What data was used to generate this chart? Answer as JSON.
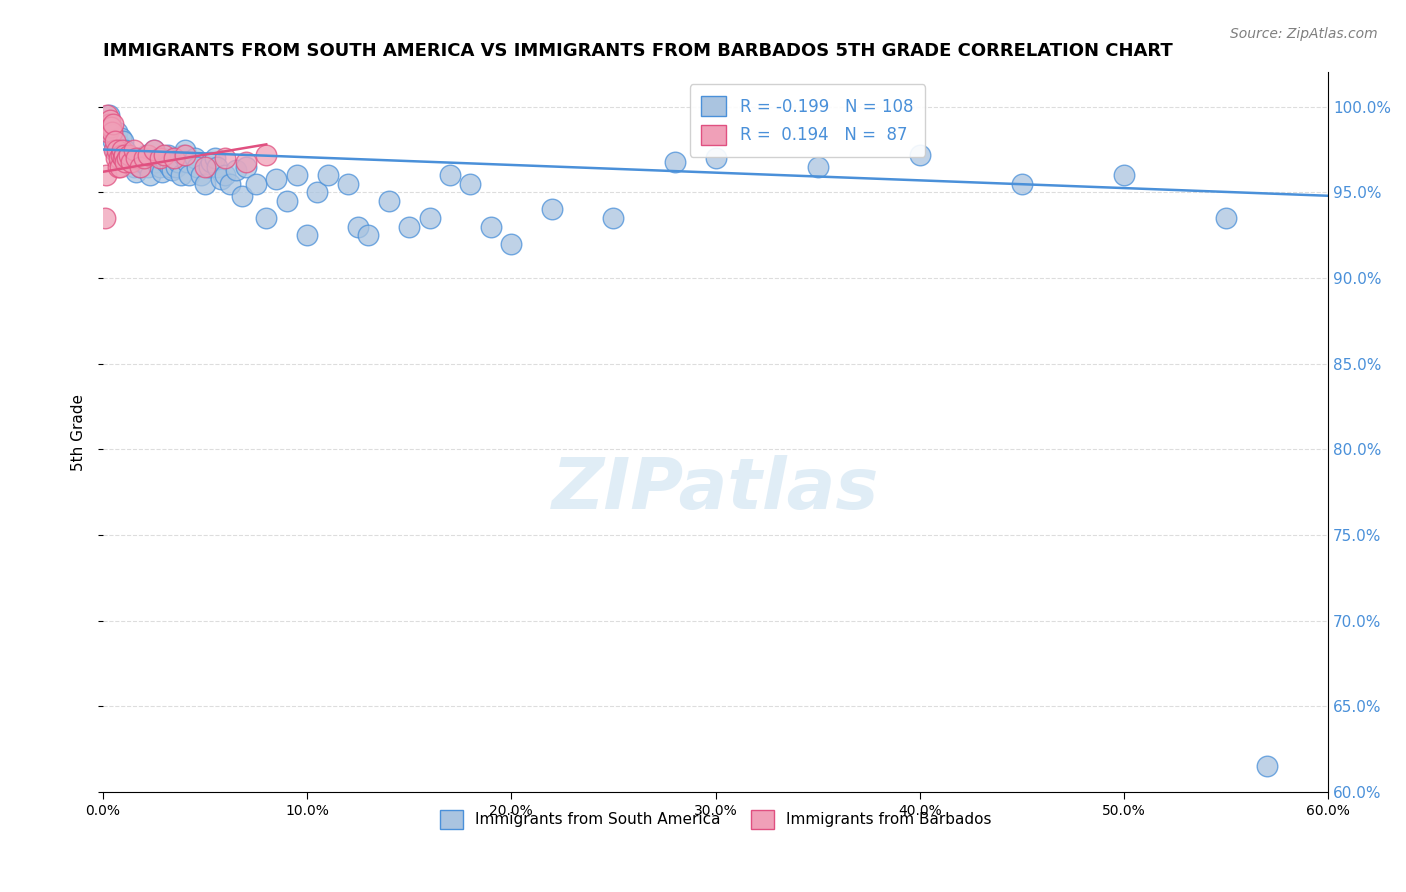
{
  "title": "IMMIGRANTS FROM SOUTH AMERICA VS IMMIGRANTS FROM BARBADOS 5TH GRADE CORRELATION CHART",
  "source": "Source: ZipAtlas.com",
  "ylabel": "5th Grade",
  "xlim": [
    0.0,
    60.0
  ],
  "ylim": [
    60.0,
    102.0
  ],
  "yticks": [
    60.0,
    65.0,
    70.0,
    75.0,
    80.0,
    85.0,
    90.0,
    95.0,
    100.0
  ],
  "ytick_labels": [
    "60.0%",
    "65.0%",
    "70.0%",
    "75.0%",
    "80.0%",
    "85.0%",
    "90.0%",
    "95.0%",
    "100.0%"
  ],
  "xticks": [
    0,
    10,
    20,
    30,
    40,
    50,
    60
  ],
  "xtick_labels": [
    "0.0%",
    "10.0%",
    "20.0%",
    "30.0%",
    "40.0%",
    "50.0%",
    "60.0%"
  ],
  "grid_color": "#dddddd",
  "background_color": "#ffffff",
  "blue_color": "#aac4e0",
  "blue_line_color": "#4a90d9",
  "pink_color": "#f0a0b8",
  "pink_line_color": "#e05080",
  "legend_R_blue": "-0.199",
  "legend_N_blue": "108",
  "legend_R_pink": "0.194",
  "legend_N_pink": "87",
  "watermark": "ZIPatlas",
  "blue_scatter_x": [
    0.3,
    0.5,
    0.6,
    0.7,
    0.8,
    0.9,
    1.0,
    1.1,
    1.2,
    1.3,
    1.4,
    1.5,
    1.6,
    1.7,
    1.8,
    1.9,
    2.0,
    2.1,
    2.2,
    2.3,
    2.5,
    2.6,
    2.7,
    2.8,
    2.9,
    3.0,
    3.1,
    3.2,
    3.3,
    3.4,
    3.5,
    3.6,
    3.7,
    3.8,
    3.9,
    4.0,
    4.1,
    4.2,
    4.5,
    4.6,
    4.8,
    5.0,
    5.2,
    5.3,
    5.5,
    5.6,
    5.8,
    6.0,
    6.2,
    6.5,
    6.8,
    7.0,
    7.5,
    8.0,
    8.5,
    9.0,
    9.5,
    10.0,
    10.5,
    11.0,
    12.0,
    12.5,
    13.0,
    14.0,
    15.0,
    16.0,
    17.0,
    18.0,
    19.0,
    20.0,
    22.0,
    25.0,
    28.0,
    30.0,
    35.0,
    40.0,
    45.0,
    50.0,
    55.0,
    57.0
  ],
  "blue_scatter_y": [
    99.5,
    98.0,
    97.5,
    98.5,
    97.8,
    98.2,
    98.0,
    97.5,
    97.2,
    97.0,
    96.8,
    96.5,
    96.2,
    97.0,
    96.5,
    96.8,
    97.0,
    97.2,
    96.5,
    96.0,
    97.5,
    96.8,
    97.0,
    96.5,
    96.2,
    97.0,
    96.8,
    97.2,
    96.5,
    96.3,
    97.0,
    96.5,
    96.8,
    96.0,
    97.2,
    97.5,
    96.8,
    96.0,
    97.0,
    96.5,
    96.0,
    95.5,
    96.5,
    96.8,
    97.0,
    96.5,
    95.8,
    96.0,
    95.5,
    96.3,
    94.8,
    96.5,
    95.5,
    93.5,
    95.8,
    94.5,
    96.0,
    92.5,
    95.0,
    96.0,
    95.5,
    93.0,
    92.5,
    94.5,
    93.0,
    93.5,
    96.0,
    95.5,
    93.0,
    92.0,
    94.0,
    93.5,
    96.8,
    97.0,
    96.5,
    97.2,
    95.5,
    96.0,
    93.5,
    61.5
  ],
  "pink_scatter_x": [
    0.1,
    0.15,
    0.2,
    0.25,
    0.3,
    0.35,
    0.4,
    0.45,
    0.5,
    0.55,
    0.6,
    0.65,
    0.7,
    0.75,
    0.8,
    0.85,
    0.9,
    0.95,
    1.0,
    1.05,
    1.1,
    1.2,
    1.3,
    1.4,
    1.5,
    1.6,
    1.8,
    2.0,
    2.2,
    2.5,
    2.8,
    3.0,
    3.5,
    4.0,
    5.0,
    6.0,
    7.0,
    8.0
  ],
  "pink_scatter_y": [
    93.5,
    96.0,
    99.5,
    98.5,
    99.0,
    99.2,
    98.8,
    98.5,
    99.0,
    97.5,
    98.0,
    97.0,
    97.5,
    96.5,
    97.0,
    96.5,
    97.2,
    97.5,
    97.0,
    97.2,
    96.8,
    97.0,
    97.2,
    96.8,
    97.5,
    97.0,
    96.5,
    97.0,
    97.2,
    97.5,
    97.0,
    97.2,
    97.0,
    97.2,
    96.5,
    97.0,
    96.8,
    97.2
  ],
  "blue_trend_x": [
    0.0,
    60.0
  ],
  "blue_trend_y": [
    97.5,
    94.8
  ],
  "pink_trend_x": [
    0.0,
    8.0
  ],
  "pink_trend_y": [
    96.2,
    97.8
  ]
}
